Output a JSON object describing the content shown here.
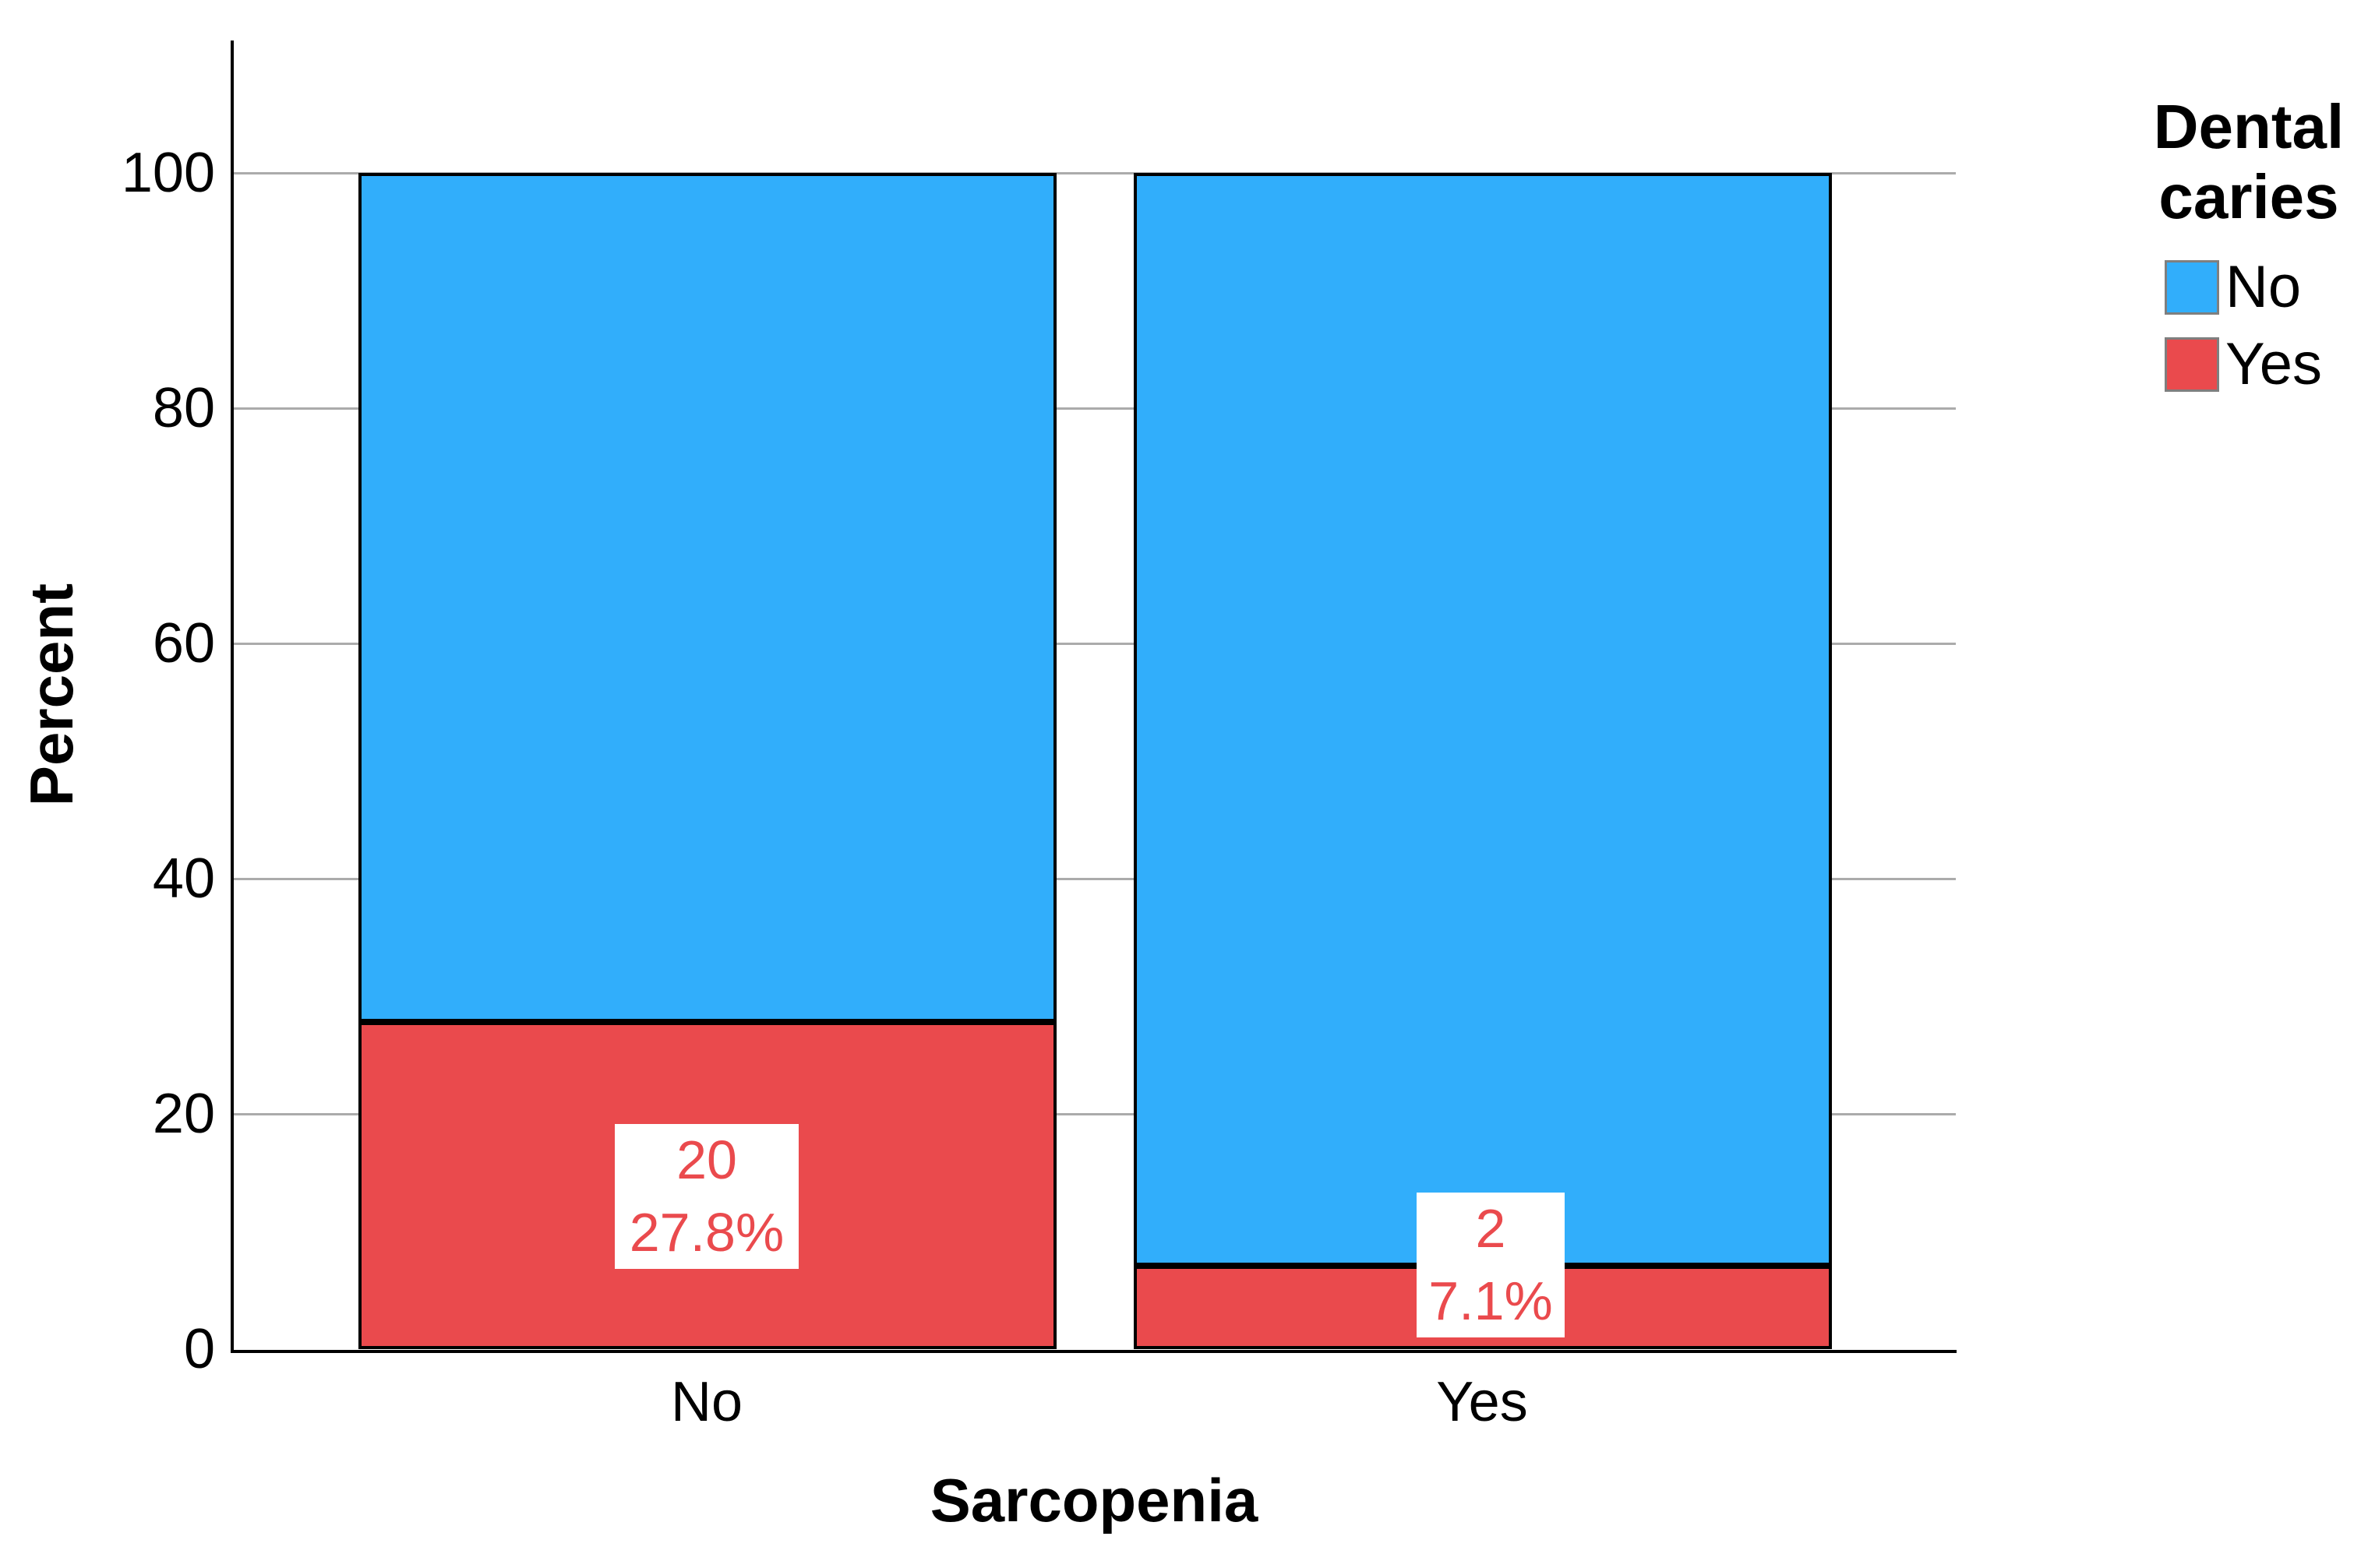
{
  "figure": {
    "y_axis": {
      "title": "Percent",
      "ticks": [
        "100",
        "80",
        "60",
        "40",
        "20",
        "0"
      ]
    },
    "x_axis": {
      "title": "Sarcopenia",
      "ticks": [
        "No",
        "Yes"
      ]
    },
    "legend": {
      "title": "Dental caries",
      "items": [
        {
          "label": "No",
          "color": "#31aefb"
        },
        {
          "label": "Yes",
          "color": "#ea4a4d"
        }
      ]
    },
    "bar_labels": [
      {
        "count": "20",
        "percent": "27.8%"
      },
      {
        "count": "2",
        "percent": "7.1%"
      }
    ]
  },
  "colors": {
    "bar_no": "#31aefb",
    "bar_yes": "#ea4a4d",
    "bar_border": "#000000",
    "data_label_text": "#ea4a4d",
    "gridline": "#ababab",
    "axis_line": "#000000",
    "legend_swatch_border": "#7f7f7f"
  },
  "chart_data": {
    "type": "bar",
    "stacked": true,
    "title": "",
    "xlabel": "Sarcopenia",
    "ylabel": "Percent",
    "categories": [
      "No",
      "Yes"
    ],
    "series": [
      {
        "name": "No",
        "color": "#31aefb",
        "values": [
          72.2,
          92.9
        ]
      },
      {
        "name": "Yes",
        "color": "#ea4a4d",
        "values": [
          27.8,
          7.1
        ]
      }
    ],
    "annotations": [
      {
        "category": "No",
        "series": "Yes",
        "count": 20,
        "percent": "27.8%"
      },
      {
        "category": "Yes",
        "series": "Yes",
        "count": 2,
        "percent": "7.1%"
      }
    ],
    "y_ticks": [
      0,
      20,
      40,
      60,
      80,
      100
    ],
    "ylim": [
      0,
      110
    ],
    "grid": true,
    "legend_title": "Dental caries",
    "legend_position": "right"
  }
}
